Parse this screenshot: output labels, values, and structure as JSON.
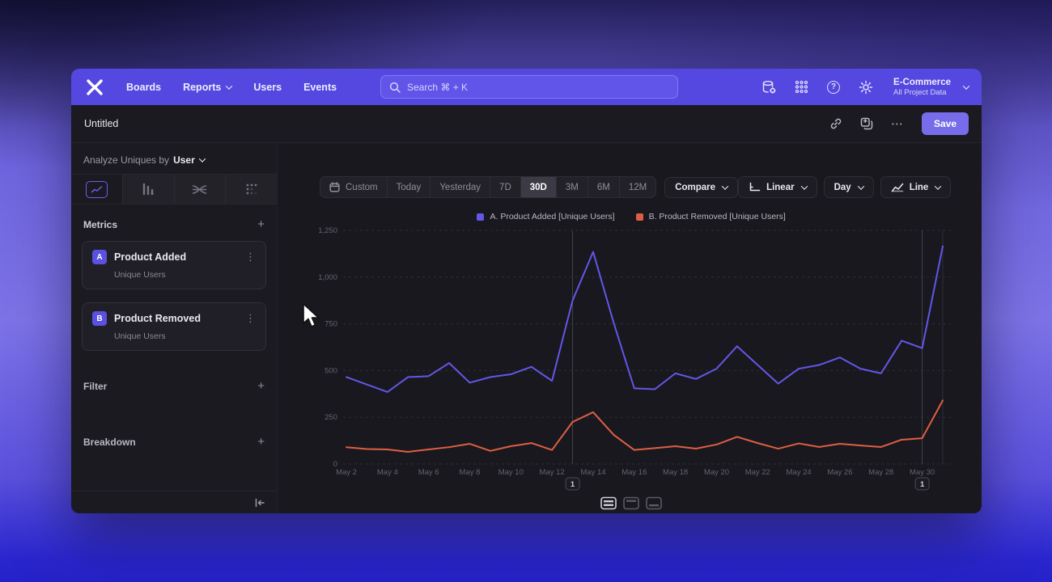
{
  "icons": {
    "plus": "+",
    "ellipsis_v": "⋮",
    "ellipsis_h": "⋯",
    "help": "?"
  },
  "nav": {
    "items": [
      "Boards",
      "Reports",
      "Users",
      "Events"
    ],
    "search": {
      "placeholder": "Search  ⌘ + K"
    },
    "project": {
      "name": "E-Commerce",
      "subtitle": "All Project Data"
    }
  },
  "titlebar": {
    "title": "Untitled",
    "save_label": "Save"
  },
  "sidebar": {
    "analyze_label": "Analyze Uniques by",
    "analyze_value": "User",
    "metrics_label": "Metrics",
    "filter_label": "Filter",
    "breakdown_label": "Breakdown",
    "metrics": [
      {
        "badge": "A",
        "name": "Product Added",
        "subtitle": "Unique Users"
      },
      {
        "badge": "B",
        "name": "Product Removed",
        "subtitle": "Unique Users"
      }
    ]
  },
  "toolbar": {
    "ranges": [
      "Custom",
      "Today",
      "Yesterday",
      "7D",
      "30D",
      "3M",
      "6M",
      "12M"
    ],
    "selected_range": "30D",
    "compare_label": "Compare",
    "scale_label": "Linear",
    "interval_label": "Day",
    "chart_type_label": "Line"
  },
  "chart_data": {
    "type": "line",
    "title": "",
    "xlabel": "",
    "ylabel": "",
    "ylim": [
      0,
      1250
    ],
    "grid": "horizontal-dashed",
    "legend_position": "top-center",
    "x": [
      "May 2",
      "May 3",
      "May 4",
      "May 5",
      "May 6",
      "May 7",
      "May 8",
      "May 9",
      "May 10",
      "May 11",
      "May 12",
      "May 13",
      "May 14",
      "May 15",
      "May 16",
      "May 17",
      "May 18",
      "May 19",
      "May 20",
      "May 21",
      "May 22",
      "May 23",
      "May 24",
      "May 25",
      "May 26",
      "May 27",
      "May 28",
      "May 29",
      "May 30",
      "May 31"
    ],
    "x_tick_labels": [
      "May 2",
      "May 4",
      "May 6",
      "May 8",
      "May 10",
      "May 12",
      "May 14",
      "May 16",
      "May 18",
      "May 20",
      "May 22",
      "May 24",
      "May 26",
      "May 28",
      "May 30"
    ],
    "y_ticks": [
      0,
      250,
      500,
      750,
      1000,
      1250
    ],
    "y_tick_labels": [
      "0",
      "250",
      "500",
      "750",
      "1,000",
      "1,250"
    ],
    "series": [
      {
        "name": "A. Product Added [Unique Users]",
        "color": "#6257e8",
        "values": [
          465,
          425,
          385,
          465,
          470,
          540,
          435,
          465,
          480,
          520,
          445,
          875,
          1135,
          755,
          405,
          400,
          485,
          455,
          510,
          630,
          530,
          430,
          510,
          530,
          570,
          510,
          485,
          660,
          620,
          1165
        ]
      },
      {
        "name": "B. Product Removed [Unique Users]",
        "color": "#dd5f43",
        "values": [
          90,
          80,
          78,
          65,
          78,
          90,
          108,
          70,
          95,
          112,
          75,
          225,
          277,
          156,
          75,
          85,
          95,
          82,
          104,
          145,
          112,
          82,
          110,
          91,
          108,
          99,
          91,
          130,
          138,
          340
        ]
      }
    ],
    "annotations": [
      {
        "label": "1",
        "index": 11
      },
      {
        "label": "1",
        "index": 28
      }
    ]
  }
}
